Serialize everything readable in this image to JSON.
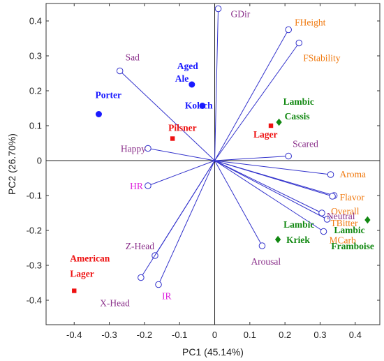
{
  "chart_data": {
    "type": "scatter",
    "xlabel": "PC1 (45.14%)",
    "ylabel": "PC2 (26.70%)",
    "xlim": [
      -0.48,
      0.47
    ],
    "ylim": [
      -0.47,
      0.45
    ],
    "xticks": [
      -0.4,
      -0.3,
      -0.2,
      -0.1,
      0,
      0.1,
      0.2,
      0.3,
      0.4
    ],
    "yticks": [
      -0.4,
      -0.3,
      -0.2,
      -0.1,
      0,
      0.1,
      0.2,
      0.3,
      0.4
    ],
    "grid": false,
    "colors": {
      "loading": "#3333cc",
      "blue": "#1a1aff",
      "red": "#ee1111",
      "green": "#118811",
      "purple": "#8a2f8a",
      "orange": "#f07a10",
      "magenta": "#dd22dd"
    },
    "loadings": [
      {
        "name": "GDir",
        "x": 0.01,
        "y": 0.435,
        "color": "purple"
      },
      {
        "name": "FHeight",
        "x": 0.21,
        "y": 0.375,
        "color": "orange"
      },
      {
        "name": "FStability",
        "x": 0.24,
        "y": 0.337,
        "color": "orange"
      },
      {
        "name": "Sad",
        "x": -0.27,
        "y": 0.257,
        "color": "purple"
      },
      {
        "name": "Happy",
        "x": -0.19,
        "y": 0.035,
        "color": "purple"
      },
      {
        "name": "Scared",
        "x": 0.21,
        "y": 0.013,
        "color": "purple"
      },
      {
        "name": "HR",
        "x": -0.19,
        "y": -0.072,
        "color": "magenta"
      },
      {
        "name": "Aroma",
        "x": 0.33,
        "y": -0.04,
        "color": "orange"
      },
      {
        "name": "Flavor",
        "x": 0.34,
        "y": -0.1,
        "color": "orange"
      },
      {
        "name": "Overall",
        "x": 0.335,
        "y": -0.102,
        "color": "orange"
      },
      {
        "name": "Neutral",
        "x": 0.305,
        "y": -0.15,
        "color": "purple"
      },
      {
        "name": "TBitter",
        "x": 0.32,
        "y": -0.168,
        "color": "orange"
      },
      {
        "name": "MCarb",
        "x": 0.31,
        "y": -0.203,
        "color": "orange"
      },
      {
        "name": "Arousal",
        "x": 0.135,
        "y": -0.244,
        "color": "purple"
      },
      {
        "name": "Z-Head",
        "x": -0.17,
        "y": -0.272,
        "color": "purple"
      },
      {
        "name": "X-Head",
        "x": -0.21,
        "y": -0.335,
        "color": "purple"
      },
      {
        "name": "IR",
        "x": -0.16,
        "y": -0.355,
        "color": "magenta"
      }
    ],
    "beers": [
      {
        "name": "Porter",
        "x": -0.33,
        "y": 0.133,
        "marker": "circle",
        "color": "blue"
      },
      {
        "name": "Aged Ale",
        "x": -0.065,
        "y": 0.218,
        "marker": "circle",
        "color": "blue"
      },
      {
        "name": "Kolsch",
        "x": -0.035,
        "y": 0.157,
        "marker": "circle",
        "color": "blue"
      },
      {
        "name": "Pilsner",
        "x": -0.12,
        "y": 0.063,
        "marker": "square",
        "color": "red"
      },
      {
        "name": "Lager",
        "x": 0.16,
        "y": 0.1,
        "marker": "square",
        "color": "red"
      },
      {
        "name": "American Lager",
        "x": -0.4,
        "y": -0.373,
        "marker": "square",
        "color": "red"
      },
      {
        "name": "Lambic Cassis",
        "x": 0.183,
        "y": 0.11,
        "marker": "diamond",
        "color": "green"
      },
      {
        "name": "Lambic Kriek",
        "x": 0.18,
        "y": -0.226,
        "marker": "diamond",
        "color": "green"
      },
      {
        "name": "Lambic Framboise",
        "x": 0.435,
        "y": -0.17,
        "marker": "diamond",
        "color": "green"
      }
    ]
  }
}
